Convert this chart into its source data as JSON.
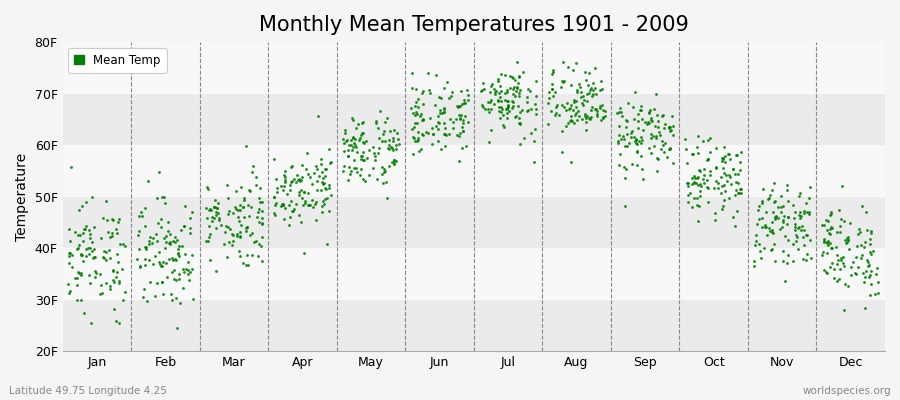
{
  "title": "Monthly Mean Temperatures 1901 - 2009",
  "ylabel": "Temperature",
  "xlim": [
    0,
    12
  ],
  "ylim": [
    20,
    80
  ],
  "yticks": [
    20,
    30,
    40,
    50,
    60,
    70,
    80
  ],
  "ytick_labels": [
    "20F",
    "30F",
    "40F",
    "50F",
    "60F",
    "70F",
    "80F"
  ],
  "month_labels": [
    "Jan",
    "Feb",
    "Mar",
    "Apr",
    "May",
    "Jun",
    "Jul",
    "Aug",
    "Sep",
    "Oct",
    "Nov",
    "Dec"
  ],
  "month_positions": [
    0.5,
    1.5,
    2.5,
    3.5,
    4.5,
    5.5,
    6.5,
    7.5,
    8.5,
    9.5,
    10.5,
    11.5
  ],
  "dashed_line_positions": [
    1,
    2,
    3,
    4,
    5,
    6,
    7,
    8,
    9,
    10,
    11
  ],
  "dot_color": "#008000",
  "dot_size": 4,
  "legend_label": "Mean Temp",
  "bottom_left_text": "Latitude 49.75 Longitude 4.25",
  "bottom_right_text": "worldspecies.org",
  "background_color": "#f5f5f5",
  "band_colors": [
    "#ebebeb",
    "#f8f8f8"
  ],
  "title_fontsize": 15,
  "axis_fontsize": 10,
  "tick_fontsize": 9,
  "month_mean_temps_C": [
    3.5,
    4.0,
    7.5,
    11.0,
    15.0,
    18.5,
    20.5,
    20.0,
    16.5,
    12.0,
    7.0,
    4.0
  ],
  "month_std_temps_C": [
    3.0,
    3.0,
    2.5,
    2.0,
    2.0,
    2.0,
    2.0,
    2.0,
    2.0,
    2.0,
    2.0,
    2.5
  ],
  "n_years": 109
}
